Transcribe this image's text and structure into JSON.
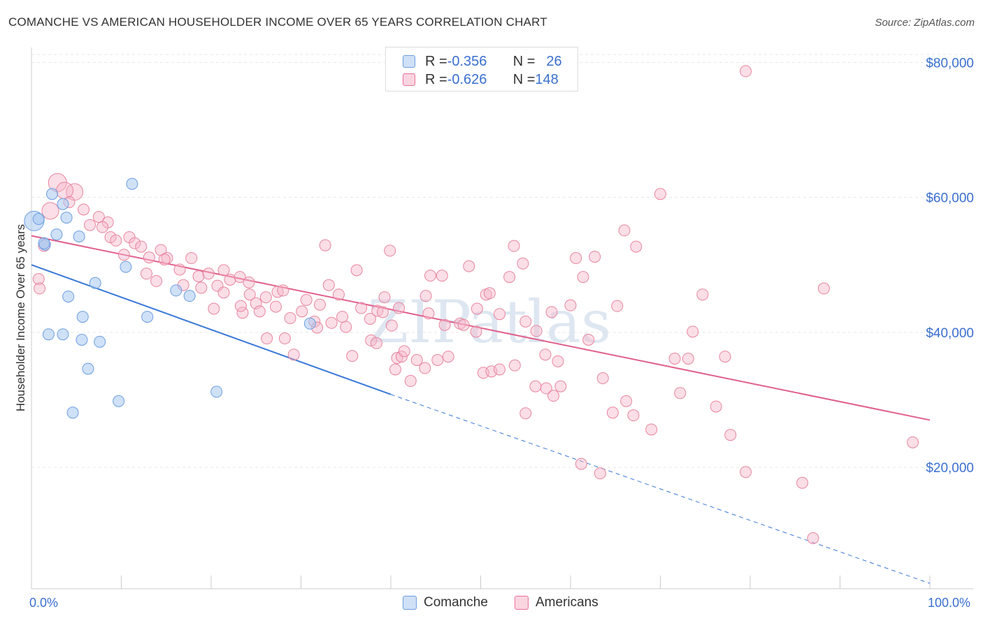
{
  "title": "COMANCHE VS AMERICAN HOUSEHOLDER INCOME OVER 65 YEARS CORRELATION CHART",
  "source": "Source: ZipAtlas.com",
  "watermark": "ZIPatlas",
  "legend": {
    "rows": [
      {
        "r_label": "R = ",
        "r_value": "-0.356",
        "n_label": "N = ",
        "n_value": "26",
        "color": "#a8c8f0"
      },
      {
        "r_label": "R = ",
        "r_value": "-0.626",
        "n_label": "N = ",
        "n_value": "148",
        "color": "#f7b6c9"
      }
    ]
  },
  "bottom_legend": [
    {
      "label": "Comanche",
      "color": "#a8c8f0"
    },
    {
      "label": "Americans",
      "color": "#f7b6c9"
    }
  ],
  "chart_data": {
    "type": "scatter",
    "title": "COMANCHE VS AMERICAN HOUSEHOLDER INCOME OVER 65 YEARS CORRELATION CHART",
    "xlabel": "",
    "ylabel": "Householder Income Over 65 years",
    "xlim": [
      0,
      100
    ],
    "ylim": [
      2000,
      82000
    ],
    "x_tick_labels": [
      "0.0%",
      "100.0%"
    ],
    "y_ticks": [
      20000,
      40000,
      60000,
      80000
    ],
    "y_tick_labels": [
      "$20,000",
      "$40,000",
      "$60,000",
      "$80,000"
    ],
    "grid": true,
    "colors": {
      "comanche": "#6d9ee0",
      "comanche_fill": "#a8c8f0",
      "americans": "#e8709a",
      "americans_fill": "#f7b6c9"
    },
    "series": [
      {
        "name": "Comanche",
        "trend": {
          "x0": 0,
          "y0": 50000,
          "x1": 40,
          "y1": 30800,
          "dash_to_x": 100,
          "dash_to_y": 2800
        },
        "points": [
          {
            "x": 0.3,
            "y": 56500,
            "s": 14
          },
          {
            "x": 1.5,
            "y": 53000
          },
          {
            "x": 2.3,
            "y": 60500
          },
          {
            "x": 2.8,
            "y": 54500
          },
          {
            "x": 3.5,
            "y": 59000
          },
          {
            "x": 3.9,
            "y": 57000
          },
          {
            "x": 5.3,
            "y": 54200
          },
          {
            "x": 11.2,
            "y": 62000
          },
          {
            "x": 4.1,
            "y": 45300
          },
          {
            "x": 7.1,
            "y": 47300
          },
          {
            "x": 10.5,
            "y": 49700
          },
          {
            "x": 5.7,
            "y": 42300
          },
          {
            "x": 12.9,
            "y": 42300
          },
          {
            "x": 16.1,
            "y": 46200
          },
          {
            "x": 17.6,
            "y": 45400
          },
          {
            "x": 1.9,
            "y": 39700
          },
          {
            "x": 3.5,
            "y": 39700
          },
          {
            "x": 5.6,
            "y": 38900
          },
          {
            "x": 7.6,
            "y": 38600
          },
          {
            "x": 6.3,
            "y": 34600
          },
          {
            "x": 9.7,
            "y": 29800
          },
          {
            "x": 4.6,
            "y": 28100
          },
          {
            "x": 20.6,
            "y": 31200
          },
          {
            "x": 31.0,
            "y": 41300
          },
          {
            "x": 0.8,
            "y": 56800
          },
          {
            "x": 1.4,
            "y": 53200
          }
        ]
      },
      {
        "name": "Americans",
        "trend": {
          "x0": 0,
          "y0": 54300,
          "x1": 100,
          "y1": 27000
        },
        "points": [
          {
            "x": 2.9,
            "y": 62200,
            "s": 13
          },
          {
            "x": 4.8,
            "y": 60800,
            "s": 12
          },
          {
            "x": 3.7,
            "y": 61000,
            "s": 12
          },
          {
            "x": 4.2,
            "y": 59300
          },
          {
            "x": 5.8,
            "y": 58200
          },
          {
            "x": 2.1,
            "y": 58000,
            "s": 12
          },
          {
            "x": 7.5,
            "y": 57100
          },
          {
            "x": 8.5,
            "y": 56300
          },
          {
            "x": 6.5,
            "y": 55900
          },
          {
            "x": 7.9,
            "y": 55600
          },
          {
            "x": 8.8,
            "y": 54100
          },
          {
            "x": 9.4,
            "y": 53600
          },
          {
            "x": 10.9,
            "y": 54100
          },
          {
            "x": 11.5,
            "y": 53200
          },
          {
            "x": 12.2,
            "y": 52700
          },
          {
            "x": 1.4,
            "y": 52800
          },
          {
            "x": 10.3,
            "y": 51500
          },
          {
            "x": 13.1,
            "y": 51100
          },
          {
            "x": 14.4,
            "y": 52200
          },
          {
            "x": 15.1,
            "y": 51000
          },
          {
            "x": 14.8,
            "y": 50800
          },
          {
            "x": 16.5,
            "y": 49300
          },
          {
            "x": 17.8,
            "y": 51000
          },
          {
            "x": 18.6,
            "y": 48300
          },
          {
            "x": 19.7,
            "y": 48700
          },
          {
            "x": 21.4,
            "y": 49200
          },
          {
            "x": 22.1,
            "y": 47800
          },
          {
            "x": 23.2,
            "y": 48200
          },
          {
            "x": 12.8,
            "y": 48700
          },
          {
            "x": 13.9,
            "y": 47600
          },
          {
            "x": 16.9,
            "y": 47000
          },
          {
            "x": 18.9,
            "y": 46600
          },
          {
            "x": 20.7,
            "y": 46900
          },
          {
            "x": 24.2,
            "y": 47400
          },
          {
            "x": 0.8,
            "y": 47900
          },
          {
            "x": 0.9,
            "y": 46500
          },
          {
            "x": 21.4,
            "y": 45900
          },
          {
            "x": 24.3,
            "y": 45600
          },
          {
            "x": 26.1,
            "y": 45200
          },
          {
            "x": 27.4,
            "y": 46000
          },
          {
            "x": 28.0,
            "y": 46200
          },
          {
            "x": 25.0,
            "y": 44300
          },
          {
            "x": 20.3,
            "y": 43500
          },
          {
            "x": 23.5,
            "y": 42900
          },
          {
            "x": 25.4,
            "y": 43100
          },
          {
            "x": 28.8,
            "y": 42100
          },
          {
            "x": 30.1,
            "y": 43100
          },
          {
            "x": 30.6,
            "y": 44800
          },
          {
            "x": 31.5,
            "y": 41600
          },
          {
            "x": 32.1,
            "y": 44100
          },
          {
            "x": 33.4,
            "y": 41400
          },
          {
            "x": 33.1,
            "y": 47000
          },
          {
            "x": 34.2,
            "y": 45600
          },
          {
            "x": 34.6,
            "y": 42300
          },
          {
            "x": 35.0,
            "y": 40800
          },
          {
            "x": 36.2,
            "y": 49200
          },
          {
            "x": 36.7,
            "y": 43600
          },
          {
            "x": 37.7,
            "y": 42000
          },
          {
            "x": 38.5,
            "y": 43200
          },
          {
            "x": 39.1,
            "y": 43000
          },
          {
            "x": 39.3,
            "y": 45200
          },
          {
            "x": 32.7,
            "y": 52900
          },
          {
            "x": 39.9,
            "y": 52100
          },
          {
            "x": 40.9,
            "y": 43600
          },
          {
            "x": 43.9,
            "y": 45400
          },
          {
            "x": 44.4,
            "y": 48400
          },
          {
            "x": 45.7,
            "y": 48400
          },
          {
            "x": 44.2,
            "y": 42800
          },
          {
            "x": 46.0,
            "y": 41100
          },
          {
            "x": 47.7,
            "y": 41300
          },
          {
            "x": 48.1,
            "y": 41100
          },
          {
            "x": 48.7,
            "y": 49800
          },
          {
            "x": 49.5,
            "y": 40100
          },
          {
            "x": 49.6,
            "y": 43500
          },
          {
            "x": 50.6,
            "y": 45600
          },
          {
            "x": 51.0,
            "y": 45800
          },
          {
            "x": 52.1,
            "y": 42700
          },
          {
            "x": 53.2,
            "y": 48200
          },
          {
            "x": 53.7,
            "y": 52800
          },
          {
            "x": 54.7,
            "y": 50200
          },
          {
            "x": 55.0,
            "y": 41600
          },
          {
            "x": 56.2,
            "y": 40200
          },
          {
            "x": 57.2,
            "y": 36700
          },
          {
            "x": 57.9,
            "y": 43000
          },
          {
            "x": 58.6,
            "y": 35700
          },
          {
            "x": 60.0,
            "y": 44000
          },
          {
            "x": 60.6,
            "y": 51000
          },
          {
            "x": 61.4,
            "y": 48200
          },
          {
            "x": 62.0,
            "y": 38900
          },
          {
            "x": 62.7,
            "y": 51200
          },
          {
            "x": 65.2,
            "y": 43900
          },
          {
            "x": 66.0,
            "y": 55100
          },
          {
            "x": 67.3,
            "y": 52700
          },
          {
            "x": 70.0,
            "y": 60500
          },
          {
            "x": 74.7,
            "y": 45600
          },
          {
            "x": 73.6,
            "y": 40100
          },
          {
            "x": 71.6,
            "y": 36100
          },
          {
            "x": 73.1,
            "y": 36100
          },
          {
            "x": 77.2,
            "y": 36400
          },
          {
            "x": 79.5,
            "y": 78700
          },
          {
            "x": 88.2,
            "y": 46500
          },
          {
            "x": 26.2,
            "y": 39100
          },
          {
            "x": 28.2,
            "y": 39100
          },
          {
            "x": 29.2,
            "y": 36700
          },
          {
            "x": 35.7,
            "y": 36500
          },
          {
            "x": 37.8,
            "y": 38800
          },
          {
            "x": 38.4,
            "y": 38400
          },
          {
            "x": 40.1,
            "y": 41000
          },
          {
            "x": 40.7,
            "y": 36200
          },
          {
            "x": 41.2,
            "y": 36400
          },
          {
            "x": 41.5,
            "y": 37200
          },
          {
            "x": 42.2,
            "y": 32800
          },
          {
            "x": 42.9,
            "y": 35900
          },
          {
            "x": 43.8,
            "y": 34700
          },
          {
            "x": 45.2,
            "y": 35900
          },
          {
            "x": 46.4,
            "y": 36400
          },
          {
            "x": 40.5,
            "y": 34500
          },
          {
            "x": 50.3,
            "y": 34000
          },
          {
            "x": 51.2,
            "y": 34200
          },
          {
            "x": 52.1,
            "y": 34500
          },
          {
            "x": 53.8,
            "y": 35100
          },
          {
            "x": 56.1,
            "y": 32000
          },
          {
            "x": 57.3,
            "y": 31700
          },
          {
            "x": 58.1,
            "y": 30600
          },
          {
            "x": 58.9,
            "y": 32000
          },
          {
            "x": 63.6,
            "y": 33200
          },
          {
            "x": 66.2,
            "y": 29800
          },
          {
            "x": 67.0,
            "y": 27700
          },
          {
            "x": 69.0,
            "y": 25600
          },
          {
            "x": 72.2,
            "y": 31000
          },
          {
            "x": 76.2,
            "y": 29000
          },
          {
            "x": 77.8,
            "y": 24800
          },
          {
            "x": 64.7,
            "y": 28100
          },
          {
            "x": 55.0,
            "y": 28000
          },
          {
            "x": 61.2,
            "y": 20500
          },
          {
            "x": 63.3,
            "y": 19100
          },
          {
            "x": 79.5,
            "y": 19300
          },
          {
            "x": 85.8,
            "y": 17700
          },
          {
            "x": 87.0,
            "y": 9500
          },
          {
            "x": 98.1,
            "y": 23700
          },
          {
            "x": 23.3,
            "y": 43900
          },
          {
            "x": 27.2,
            "y": 43800
          },
          {
            "x": 31.8,
            "y": 40700
          }
        ]
      }
    ]
  },
  "y_axis_label": "Householder Income Over 65 years",
  "x_axis": {
    "left_label": "0.0%",
    "right_label": "100.0%"
  }
}
